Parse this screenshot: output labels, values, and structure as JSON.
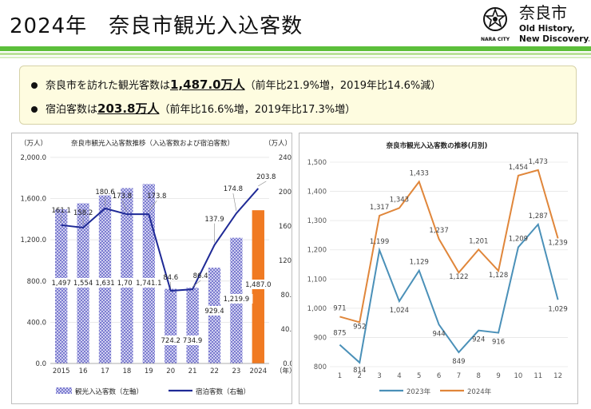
{
  "header": {
    "title": "2024年　奈良市観光入込客数",
    "logo_city": "奈良市",
    "logo_tag1": "Old History,",
    "logo_tag2": "New Discovery.",
    "logo_seal_text": "NARA CITY"
  },
  "colors": {
    "stripe_dark": "#5cbf3a",
    "stripe_light": "#b9e29a",
    "bar": "#7b7bcf",
    "bar_2024": "#f07a22",
    "line": "#1f2a96",
    "series_2023": "#4a90b8",
    "series_2024": "#e0863a"
  },
  "summary": {
    "line1_pre": "奈良市を訪れた観光客数は",
    "line1_value": "1,487.0万人",
    "line1_post": "（前年比21.9%増，2019年比14.6%減）",
    "line2_pre": "宿泊客数は",
    "line2_value": "203.8万人",
    "line2_post": "（前年比16.6%増，2019年比17.3%増）"
  },
  "chart_data": [
    {
      "type": "bar",
      "title": "奈良市観光入込客数推移（入込客数および宿泊客数）",
      "y_left_unit": "（万人）",
      "y_right_unit": "（万人）",
      "x_unit": "（年）",
      "categories": [
        "2015",
        "16",
        "17",
        "18",
        "19",
        "20",
        "21",
        "22",
        "23",
        "2024"
      ],
      "ylim_left": [
        0,
        2000
      ],
      "yticks_left": [
        "0.0",
        "400.0",
        "800.0",
        "1,200.0",
        "1,600.0",
        "2,000.0"
      ],
      "ylim_right": [
        0,
        240
      ],
      "yticks_right": [
        "0.0",
        "40.0",
        "80.0",
        "120.0",
        "160.0",
        "200.0",
        "240.0"
      ],
      "series": [
        {
          "name": "観光入込客数（左軸）",
          "axis": "left",
          "values": [
            1497,
            1554,
            1631,
            1702,
            1741.1,
            724.2,
            734.9,
            929.4,
            1219.9,
            1487.0
          ],
          "labels": [
            "1,497",
            "1,554",
            "1,631",
            "1,702",
            "1,741.1",
            "724.2",
            "734.9",
            "929.4",
            "1,219.9",
            "1,487.0"
          ]
        },
        {
          "name": "宿泊客数（右軸）",
          "axis": "right",
          "values": [
            161.1,
            158.2,
            180.6,
            173.8,
            173.8,
            84.6,
            86.4,
            137.9,
            174.8,
            203.8
          ],
          "labels": [
            "161.1",
            "158.2",
            "180.6",
            "173.8",
            "173.8",
            "84.6",
            "86.4",
            "137.9",
            "174.8",
            "203.8"
          ]
        }
      ]
    },
    {
      "type": "line",
      "title": "奈良市観光入込客数の推移(月別)",
      "categories": [
        "1",
        "2",
        "3",
        "4",
        "5",
        "6",
        "7",
        "8",
        "9",
        "10",
        "11",
        "12"
      ],
      "ylim": [
        800,
        1500
      ],
      "yticks": [
        "800",
        "900",
        "1,000",
        "1,100",
        "1,200",
        "1,300",
        "1,400",
        "1,500"
      ],
      "series": [
        {
          "name": "2023年",
          "values": [
            875,
            814,
            1199,
            1024,
            1129,
            944,
            849,
            924,
            916,
            1209,
            1287,
            1029
          ],
          "labels": [
            "875",
            "814",
            "1,199",
            "1,024",
            "1,129",
            "944",
            "849",
            "924",
            "916",
            "1,209",
            "1,287",
            "1,029"
          ]
        },
        {
          "name": "2024年",
          "values": [
            971,
            952,
            1317,
            1343,
            1433,
            1237,
            1122,
            1201,
            1128,
            1454,
            1473,
            1239
          ],
          "labels": [
            "971",
            "952",
            "1,317",
            "1,343",
            "1,433",
            "1,237",
            "1,122",
            "1,201",
            "1,128",
            "1,454",
            "1,473",
            "1,239"
          ]
        }
      ]
    }
  ]
}
